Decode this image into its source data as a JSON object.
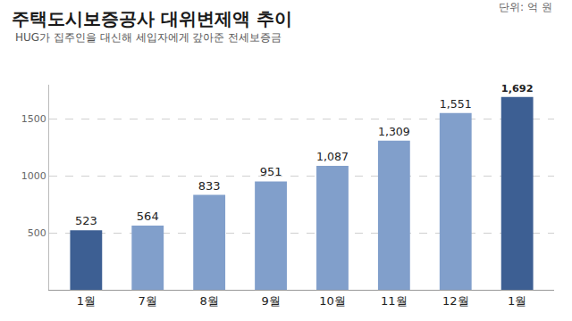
{
  "chart_data": {
    "type": "bar",
    "title": "주택도시보증공사 대위변제액 추이",
    "subtitle": "HUG가 집주인을 대신해 세입자에게 갚아준 전세보증금",
    "annotations": [
      "단위: 억 원"
    ],
    "categories": [
      "1월",
      "7월",
      "8월",
      "9월",
      "10월",
      "11월",
      "12월",
      "1월"
    ],
    "values": [
      523,
      564,
      833,
      951,
      1087,
      1309,
      1551,
      1692
    ],
    "value_labels": [
      "523",
      "564",
      "833",
      "951",
      "1,087",
      "1,309",
      "1,551",
      "1,692"
    ],
    "colors": [
      "#3d5f93",
      "#819fcb",
      "#819fcb",
      "#819fcb",
      "#819fcb",
      "#819fcb",
      "#819fcb",
      "#3d5f93"
    ],
    "ylim": [
      0,
      1800
    ],
    "yticks": [
      500,
      1000,
      1500
    ],
    "grid": true,
    "data_labels": true
  }
}
